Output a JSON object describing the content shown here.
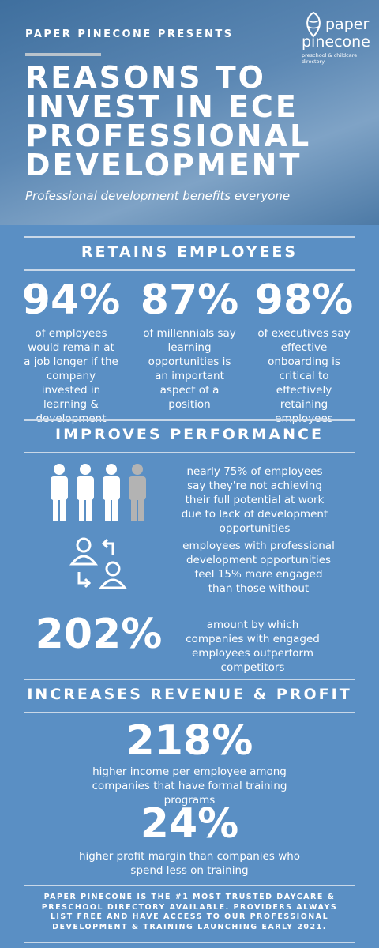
{
  "header": {
    "presents": "PAPER PINECONE PRESENTS",
    "logo": {
      "name_top": "paper",
      "name_bottom": "pinecone",
      "tagline": "preschool & childcare directory"
    },
    "title_lines": [
      "REASONS TO",
      "INVEST IN ECE",
      "PROFESSIONAL",
      "DEVELOPMENT"
    ],
    "subtitle": "Professional development benefits everyone"
  },
  "retains": {
    "heading": "RETAINS EMPLOYEES",
    "stats": [
      {
        "value": "94%",
        "text": "of employees would remain at a job longer if the company invested in learning & development"
      },
      {
        "value": "87%",
        "text": "of millennials say learning opportunities is an important aspect of a position"
      },
      {
        "value": "98%",
        "text": "of executives say effective onboarding is critical to effectively retaining employees"
      }
    ]
  },
  "performance": {
    "heading": "IMPROVES PERFORMANCE",
    "items": [
      {
        "text": "nearly 75% of employees say they're not achieving their full potential at work due to lack of development opportunities"
      },
      {
        "text": "employees with professional development opportunities feel 15% more engaged than those without"
      },
      {
        "value": "202%",
        "text": "amount by which companies with engaged employees outperform competitors"
      }
    ]
  },
  "revenue": {
    "heading": "INCREASES REVENUE & PROFIT",
    "stats": [
      {
        "value": "218%",
        "text": "higher income per employee among companies that have formal training programs"
      },
      {
        "value": "24%",
        "text": "higher profit margin than companies who spend less on training"
      }
    ]
  },
  "footer": "PAPER PINECONE IS THE #1 MOST TRUSTED DAYCARE & PRESCHOOL DIRECTORY AVAILABLE. PROVIDERS ALWAYS LIST FREE AND HAVE ACCESS TO OUR PROFESSIONAL DEVELOPMENT & TRAINING LAUNCHING EARLY 2021."
}
